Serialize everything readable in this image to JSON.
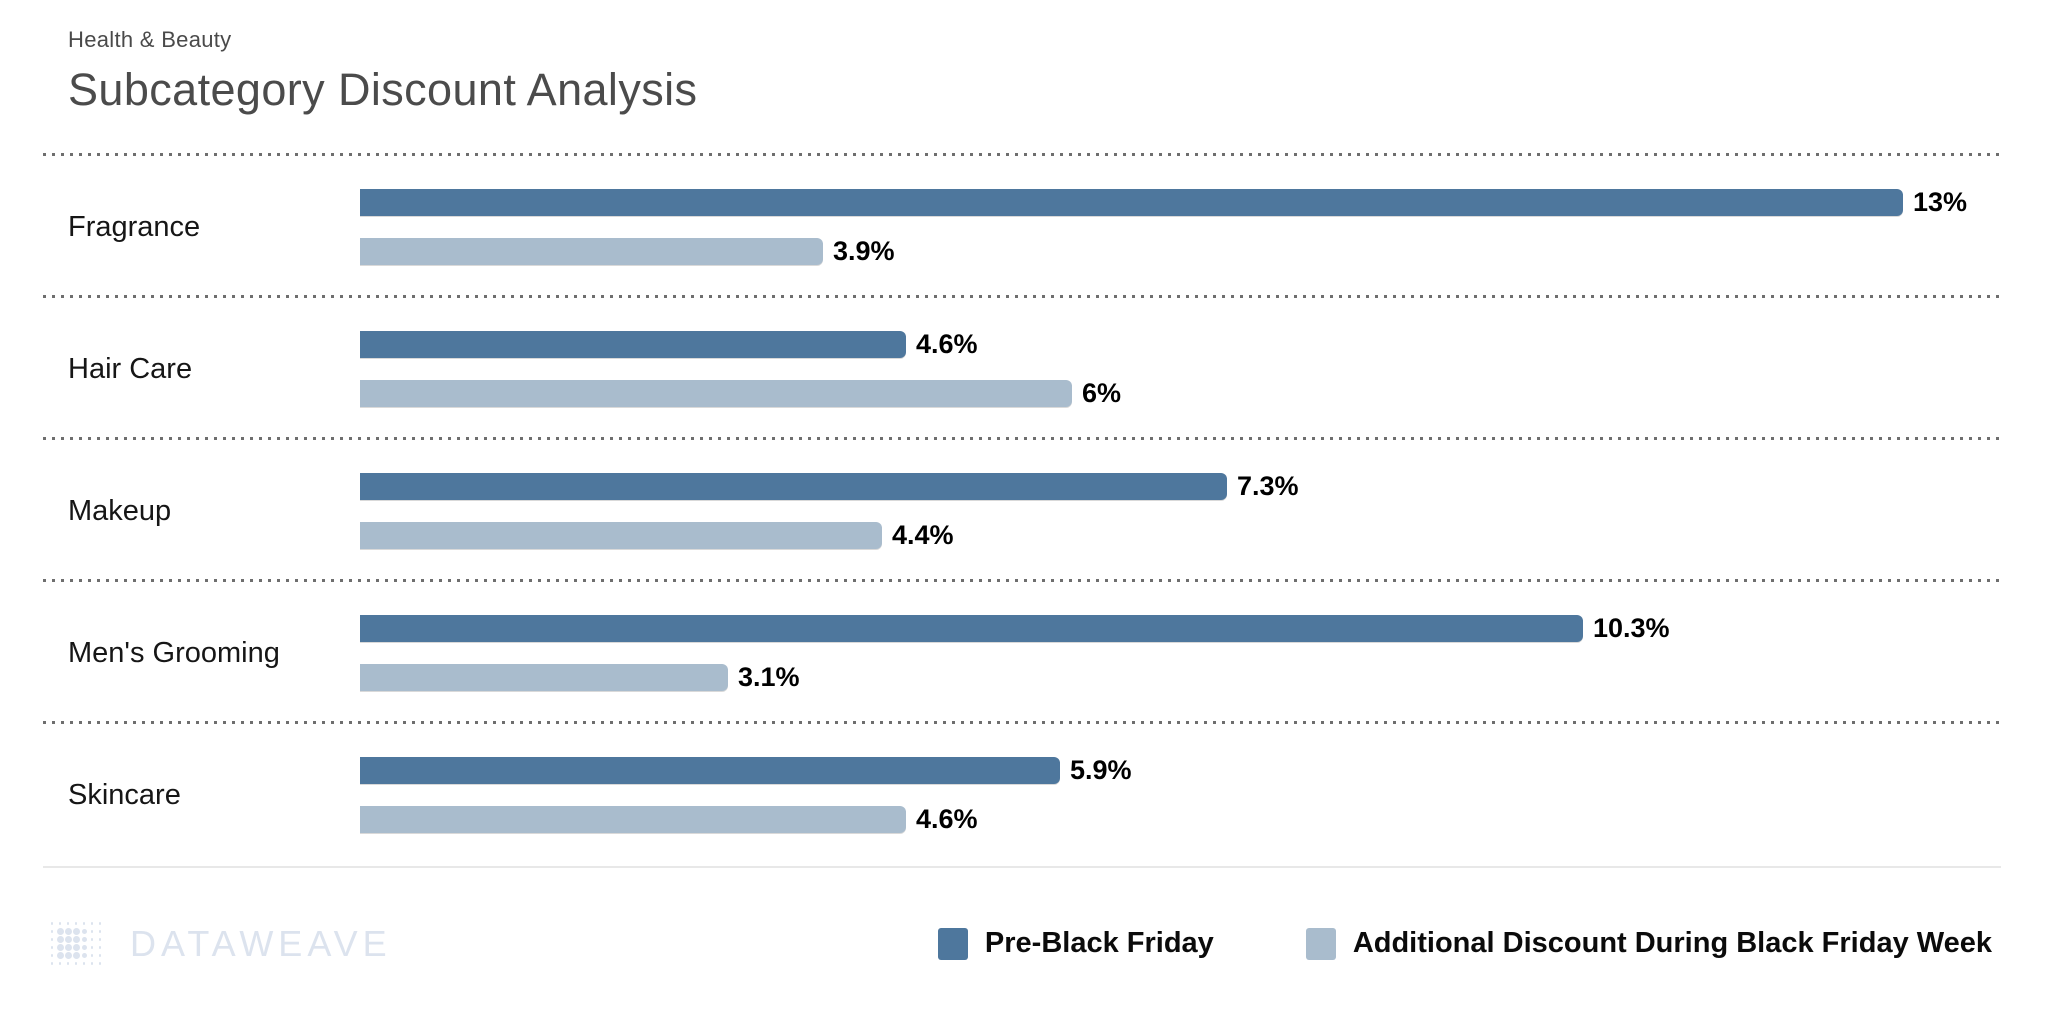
{
  "header": {
    "eyebrow": "Health & Beauty",
    "title": "Subcategory Discount Analysis"
  },
  "chart_data": {
    "type": "bar",
    "orientation": "horizontal",
    "title": "Subcategory Discount Analysis",
    "categories": [
      "Fragrance",
      "Hair Care",
      "Makeup",
      "Men's Grooming",
      "Skincare"
    ],
    "series": [
      {
        "name": "Pre-Black Friday",
        "color": "#4e779d",
        "values": [
          13,
          4.6,
          7.3,
          10.3,
          5.9
        ],
        "labels": [
          "13%",
          "4.6%",
          "7.3%",
          "10.3%",
          "5.9%"
        ]
      },
      {
        "name": "Additional Discount During Black Friday Week",
        "color": "#a9bccd",
        "values": [
          3.9,
          6,
          4.4,
          3.1,
          4.6
        ],
        "labels": [
          "3.9%",
          "6%",
          "4.4%",
          "3.1%",
          "4.6%"
        ]
      }
    ],
    "xlim": [
      0,
      13.8
    ],
    "value_suffix": "%",
    "grid": "dotted row separators",
    "legend_position": "bottom-right"
  },
  "footer": {
    "logo_text": "DATAWEAVE",
    "logo_color": "#dce3ee"
  }
}
